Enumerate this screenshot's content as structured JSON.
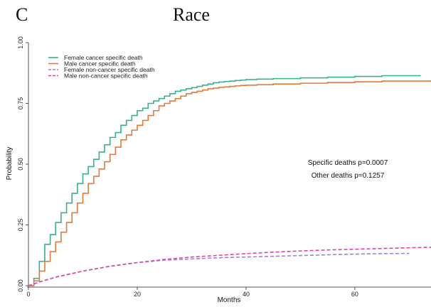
{
  "panel": {
    "letter": "C",
    "title": "Race"
  },
  "chart_data": {
    "type": "line",
    "title": "Race",
    "xlabel": "Months",
    "ylabel": "Probability",
    "xlim": [
      0,
      74
    ],
    "ylim": [
      0,
      1.0
    ],
    "x_ticks": [
      0,
      20,
      40,
      60
    ],
    "y_ticks": [
      "0.00",
      "0.25",
      "0.50",
      "0.75",
      "1.00"
    ],
    "legend_position": "top-left",
    "grid": false,
    "series": [
      {
        "name": "Female cancer specific death",
        "color": "#3bb08f",
        "style": "step",
        "x": [
          0,
          1,
          2,
          3,
          4,
          5,
          6,
          7,
          8,
          9,
          10,
          11,
          12,
          13,
          14,
          15,
          16,
          17,
          18,
          19,
          20,
          21,
          22,
          23,
          24,
          25,
          26,
          27,
          28,
          29,
          30,
          31,
          32,
          33,
          34,
          35,
          36,
          37,
          38,
          39,
          40,
          42,
          45,
          50,
          55,
          60,
          65,
          72
        ],
        "y": [
          0.0,
          0.03,
          0.1,
          0.17,
          0.21,
          0.26,
          0.3,
          0.34,
          0.38,
          0.42,
          0.46,
          0.49,
          0.52,
          0.55,
          0.58,
          0.61,
          0.63,
          0.66,
          0.68,
          0.7,
          0.72,
          0.73,
          0.75,
          0.76,
          0.77,
          0.78,
          0.79,
          0.8,
          0.805,
          0.81,
          0.815,
          0.82,
          0.825,
          0.83,
          0.835,
          0.838,
          0.84,
          0.842,
          0.844,
          0.846,
          0.848,
          0.85,
          0.852,
          0.855,
          0.858,
          0.861,
          0.864,
          0.867
        ]
      },
      {
        "name": "Male cancer specific death",
        "color": "#e07b3c",
        "style": "step",
        "x": [
          0,
          1,
          2,
          3,
          4,
          5,
          6,
          7,
          8,
          9,
          10,
          11,
          12,
          13,
          14,
          15,
          16,
          17,
          18,
          19,
          20,
          21,
          22,
          23,
          24,
          25,
          26,
          27,
          28,
          29,
          30,
          31,
          32,
          33,
          34,
          35,
          36,
          37,
          38,
          39,
          40,
          42,
          45,
          50,
          55,
          60,
          65,
          74
        ],
        "y": [
          0.0,
          0.02,
          0.06,
          0.1,
          0.14,
          0.18,
          0.22,
          0.26,
          0.3,
          0.34,
          0.38,
          0.42,
          0.45,
          0.48,
          0.51,
          0.54,
          0.57,
          0.6,
          0.62,
          0.64,
          0.66,
          0.68,
          0.7,
          0.72,
          0.74,
          0.75,
          0.76,
          0.77,
          0.78,
          0.79,
          0.795,
          0.8,
          0.805,
          0.81,
          0.813,
          0.816,
          0.818,
          0.82,
          0.822,
          0.824,
          0.825,
          0.827,
          0.83,
          0.833,
          0.836,
          0.839,
          0.842,
          0.845
        ]
      },
      {
        "name": "Female non-cancer specific death",
        "color": "#9b86c9",
        "style": "dashed",
        "x": [
          0,
          2,
          5,
          10,
          15,
          20,
          25,
          30,
          35,
          40,
          45,
          50,
          55,
          60,
          65,
          70
        ],
        "y": [
          0.0,
          0.015,
          0.035,
          0.06,
          0.08,
          0.095,
          0.105,
          0.11,
          0.115,
          0.118,
          0.121,
          0.124,
          0.127,
          0.13,
          0.132,
          0.133
        ]
      },
      {
        "name": "Male non-cancer specific death",
        "color": "#e044a8",
        "style": "dashed",
        "x": [
          0,
          2,
          5,
          10,
          15,
          20,
          25,
          30,
          35,
          40,
          45,
          50,
          55,
          60,
          65,
          70,
          74
        ],
        "y": [
          0.0,
          0.015,
          0.035,
          0.06,
          0.08,
          0.095,
          0.108,
          0.118,
          0.125,
          0.132,
          0.138,
          0.143,
          0.147,
          0.15,
          0.153,
          0.156,
          0.158
        ]
      }
    ],
    "annotations": [
      "Specific deaths p=0.0007",
      "Other deaths p=0.1257"
    ]
  }
}
